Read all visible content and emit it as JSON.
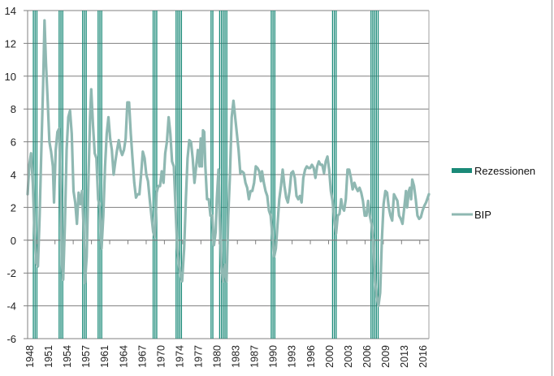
{
  "chart_data": {
    "type": "line",
    "title": "",
    "xlabel": "",
    "ylabel": "",
    "ylim": [
      -6,
      14
    ],
    "yticks": [
      14,
      12,
      10,
      8,
      6,
      4,
      2,
      0,
      -2,
      -4,
      -6
    ],
    "xtick_labels": [
      "1948",
      "1951",
      "1954",
      "1957",
      "1961",
      "1964",
      "1967",
      "1970",
      "1974",
      "1977",
      "1980",
      "1983",
      "1987",
      "1990",
      "1993",
      "1996",
      "2000",
      "2003",
      "2006",
      "2009",
      "2013",
      "2016"
    ],
    "xlim": [
      1948.0,
      2018.0
    ],
    "grid": "horizontal",
    "legend": {
      "position": "right",
      "entries": [
        "Rezessionen",
        "BIP"
      ]
    },
    "colors": {
      "recession": "#1a8a78",
      "bip": "#8fb8b2",
      "grid": "#808080"
    },
    "recessions": [
      {
        "start": 1949.0,
        "end": 1949.9
      },
      {
        "start": 1953.5,
        "end": 1954.4
      },
      {
        "start": 1957.6,
        "end": 1958.3
      },
      {
        "start": 1960.3,
        "end": 1961.1
      },
      {
        "start": 1969.9,
        "end": 1970.8
      },
      {
        "start": 1973.9,
        "end": 1975.1
      },
      {
        "start": 1980.0,
        "end": 1980.5
      },
      {
        "start": 1981.5,
        "end": 1982.8
      },
      {
        "start": 1990.5,
        "end": 1991.2
      },
      {
        "start": 2001.2,
        "end": 2001.9
      },
      {
        "start": 2007.9,
        "end": 2009.4
      }
    ],
    "series": [
      {
        "name": "BIP",
        "points": [
          [
            1948.0,
            2.8
          ],
          [
            1948.3,
            4.6
          ],
          [
            1948.6,
            5.3
          ],
          [
            1948.9,
            3.5
          ],
          [
            1949.2,
            0.5
          ],
          [
            1949.5,
            -1.4
          ],
          [
            1949.8,
            -1.6
          ],
          [
            1950.1,
            1.5
          ],
          [
            1950.4,
            5.5
          ],
          [
            1950.7,
            9.5
          ],
          [
            1950.95,
            13.4
          ],
          [
            1951.2,
            10.8
          ],
          [
            1951.5,
            8.5
          ],
          [
            1951.8,
            6.0
          ],
          [
            1952.1,
            5.4
          ],
          [
            1952.4,
            4.5
          ],
          [
            1952.6,
            2.3
          ],
          [
            1952.9,
            5.5
          ],
          [
            1953.2,
            6.6
          ],
          [
            1953.5,
            6.8
          ],
          [
            1953.8,
            3.0
          ],
          [
            1954.0,
            -1.5
          ],
          [
            1954.2,
            -2.4
          ],
          [
            1954.5,
            1.0
          ],
          [
            1954.8,
            5.5
          ],
          [
            1955.1,
            7.5
          ],
          [
            1955.4,
            7.9
          ],
          [
            1955.7,
            6.5
          ],
          [
            1956.0,
            3.0
          ],
          [
            1956.3,
            2.3
          ],
          [
            1956.6,
            1.0
          ],
          [
            1956.9,
            2.9
          ],
          [
            1957.2,
            2.2
          ],
          [
            1957.5,
            3.0
          ],
          [
            1957.8,
            0.5
          ],
          [
            1958.0,
            -2.6
          ],
          [
            1958.3,
            -1.0
          ],
          [
            1958.6,
            3.5
          ],
          [
            1958.9,
            7.5
          ],
          [
            1959.1,
            9.2
          ],
          [
            1959.4,
            7.0
          ],
          [
            1959.7,
            5.3
          ],
          [
            1960.0,
            5.0
          ],
          [
            1960.3,
            2.5
          ],
          [
            1960.6,
            2.0
          ],
          [
            1960.9,
            -0.5
          ],
          [
            1961.2,
            1.5
          ],
          [
            1961.5,
            4.5
          ],
          [
            1961.8,
            6.5
          ],
          [
            1962.1,
            7.5
          ],
          [
            1962.4,
            6.2
          ],
          [
            1962.7,
            5.5
          ],
          [
            1963.0,
            4.0
          ],
          [
            1963.3,
            4.8
          ],
          [
            1963.6,
            5.5
          ],
          [
            1963.9,
            6.1
          ],
          [
            1964.2,
            5.5
          ],
          [
            1964.5,
            5.2
          ],
          [
            1964.8,
            5.5
          ],
          [
            1965.1,
            6.2
          ],
          [
            1965.4,
            8.4
          ],
          [
            1965.7,
            8.4
          ],
          [
            1966.0,
            6.5
          ],
          [
            1966.3,
            5.0
          ],
          [
            1966.6,
            3.5
          ],
          [
            1966.9,
            2.6
          ],
          [
            1967.2,
            2.8
          ],
          [
            1967.5,
            2.8
          ],
          [
            1967.8,
            4.0
          ],
          [
            1968.1,
            5.4
          ],
          [
            1968.4,
            5.0
          ],
          [
            1968.7,
            4.0
          ],
          [
            1969.0,
            3.6
          ],
          [
            1969.3,
            2.5
          ],
          [
            1969.6,
            1.5
          ],
          [
            1969.9,
            0.5
          ],
          [
            1970.2,
            0.2
          ],
          [
            1970.5,
            2.9
          ],
          [
            1970.8,
            3.3
          ],
          [
            1971.1,
            3.3
          ],
          [
            1971.4,
            4.2
          ],
          [
            1971.7,
            3.5
          ],
          [
            1972.0,
            5.3
          ],
          [
            1972.3,
            6.0
          ],
          [
            1972.6,
            7.5
          ],
          [
            1972.9,
            6.5
          ],
          [
            1973.2,
            4.8
          ],
          [
            1973.5,
            4.5
          ],
          [
            1973.8,
            2.0
          ],
          [
            1974.1,
            -0.5
          ],
          [
            1974.4,
            -1.5
          ],
          [
            1974.7,
            -2.2
          ],
          [
            1974.95,
            -2.5
          ],
          [
            1975.3,
            -0.5
          ],
          [
            1975.6,
            2.5
          ],
          [
            1975.9,
            5.0
          ],
          [
            1976.2,
            6.1
          ],
          [
            1976.5,
            6.0
          ],
          [
            1976.8,
            5.0
          ],
          [
            1977.1,
            3.5
          ],
          [
            1977.4,
            4.5
          ],
          [
            1977.7,
            5.5
          ],
          [
            1978.0,
            4.5
          ],
          [
            1978.2,
            6.2
          ],
          [
            1978.4,
            4.5
          ],
          [
            1978.6,
            6.7
          ],
          [
            1978.8,
            6.6
          ],
          [
            1979.0,
            4.5
          ],
          [
            1979.3,
            2.5
          ],
          [
            1979.6,
            2.5
          ],
          [
            1979.9,
            1.5
          ],
          [
            1980.2,
            1.5
          ],
          [
            1980.5,
            -0.3
          ],
          [
            1980.8,
            0.5
          ],
          [
            1981.0,
            2.5
          ],
          [
            1981.3,
            4.3
          ],
          [
            1981.5,
            1.5
          ],
          [
            1981.8,
            -1.5
          ],
          [
            1982.1,
            -2.5
          ],
          [
            1982.4,
            -1.5
          ],
          [
            1982.7,
            -2.5
          ],
          [
            1983.0,
            1.5
          ],
          [
            1983.3,
            4.0
          ],
          [
            1983.6,
            7.5
          ],
          [
            1983.9,
            8.5
          ],
          [
            1984.2,
            7.5
          ],
          [
            1984.5,
            6.5
          ],
          [
            1984.8,
            5.5
          ],
          [
            1985.1,
            4.1
          ],
          [
            1985.4,
            4.2
          ],
          [
            1985.7,
            4.1
          ],
          [
            1986.0,
            3.5
          ],
          [
            1986.3,
            3.2
          ],
          [
            1986.6,
            2.5
          ],
          [
            1986.9,
            3.0
          ],
          [
            1987.2,
            3.0
          ],
          [
            1987.5,
            3.5
          ],
          [
            1987.8,
            4.5
          ],
          [
            1988.1,
            4.4
          ],
          [
            1988.4,
            4.2
          ],
          [
            1988.7,
            3.6
          ],
          [
            1988.9,
            4.2
          ],
          [
            1989.2,
            3.5
          ],
          [
            1989.5,
            3.0
          ],
          [
            1989.8,
            2.7
          ],
          [
            1990.1,
            1.8
          ],
          [
            1990.4,
            1.5
          ],
          [
            1990.7,
            0.3
          ],
          [
            1991.0,
            -1.0
          ],
          [
            1991.3,
            -0.5
          ],
          [
            1991.6,
            1.0
          ],
          [
            1991.9,
            2.5
          ],
          [
            1992.2,
            3.3
          ],
          [
            1992.5,
            4.3
          ],
          [
            1992.8,
            3.3
          ],
          [
            1993.1,
            2.6
          ],
          [
            1993.4,
            2.3
          ],
          [
            1993.7,
            3.0
          ],
          [
            1994.0,
            4.1
          ],
          [
            1994.3,
            4.2
          ],
          [
            1994.6,
            3.8
          ],
          [
            1994.9,
            2.7
          ],
          [
            1995.2,
            2.5
          ],
          [
            1995.5,
            2.7
          ],
          [
            1995.8,
            2.3
          ],
          [
            1996.1,
            3.8
          ],
          [
            1996.4,
            4.3
          ],
          [
            1996.7,
            4.5
          ],
          [
            1997.0,
            4.4
          ],
          [
            1997.3,
            4.4
          ],
          [
            1997.6,
            4.6
          ],
          [
            1997.9,
            4.4
          ],
          [
            1998.2,
            3.8
          ],
          [
            1998.5,
            4.5
          ],
          [
            1998.8,
            4.8
          ],
          [
            1999.1,
            4.6
          ],
          [
            1999.4,
            4.6
          ],
          [
            1999.7,
            4.1
          ],
          [
            2000.0,
            4.8
          ],
          [
            2000.3,
            5.1
          ],
          [
            2000.6,
            4.3
          ],
          [
            2000.9,
            3.0
          ],
          [
            2001.2,
            2.4
          ],
          [
            2001.5,
            1.2
          ],
          [
            2001.8,
            0.4
          ],
          [
            2002.1,
            1.5
          ],
          [
            2002.4,
            1.6
          ],
          [
            2002.7,
            2.5
          ],
          [
            2002.9,
            2.0
          ],
          [
            2003.2,
            1.8
          ],
          [
            2003.5,
            2.5
          ],
          [
            2003.8,
            4.3
          ],
          [
            2004.1,
            4.3
          ],
          [
            2004.4,
            3.8
          ],
          [
            2004.7,
            3.1
          ],
          [
            2005.0,
            3.5
          ],
          [
            2005.3,
            3.2
          ],
          [
            2005.6,
            3.0
          ],
          [
            2005.9,
            3.2
          ],
          [
            2006.2,
            2.9
          ],
          [
            2006.5,
            2.4
          ],
          [
            2006.8,
            1.5
          ],
          [
            2007.1,
            1.5
          ],
          [
            2007.4,
            2.4
          ],
          [
            2007.7,
            1.5
          ],
          [
            2008.0,
            1.0
          ],
          [
            2008.3,
            0.0
          ],
          [
            2008.6,
            -2.5
          ],
          [
            2008.9,
            -3.5
          ],
          [
            2009.2,
            -4.0
          ],
          [
            2009.5,
            -3.2
          ],
          [
            2009.8,
            0.0
          ],
          [
            2010.1,
            2.2
          ],
          [
            2010.4,
            3.0
          ],
          [
            2010.7,
            2.9
          ],
          [
            2011.0,
            2.0
          ],
          [
            2011.3,
            1.5
          ],
          [
            2011.6,
            1.2
          ],
          [
            2011.9,
            2.8
          ],
          [
            2012.2,
            2.6
          ],
          [
            2012.5,
            2.4
          ],
          [
            2012.8,
            1.5
          ],
          [
            2013.1,
            1.3
          ],
          [
            2013.4,
            1.0
          ],
          [
            2013.7,
            2.0
          ],
          [
            2014.0,
            3.0
          ],
          [
            2014.2,
            2.0
          ],
          [
            2014.5,
            3.0
          ],
          [
            2014.7,
            3.2
          ],
          [
            2014.9,
            2.5
          ],
          [
            2015.1,
            3.7
          ],
          [
            2015.4,
            3.3
          ],
          [
            2015.7,
            2.5
          ],
          [
            2016.0,
            1.5
          ],
          [
            2016.3,
            1.3
          ],
          [
            2016.6,
            1.4
          ],
          [
            2016.9,
            1.8
          ],
          [
            2017.2,
            2.1
          ],
          [
            2017.5,
            2.3
          ],
          [
            2017.8,
            2.6
          ],
          [
            2018.0,
            2.8
          ]
        ]
      }
    ]
  },
  "legend": {
    "items": [
      {
        "label": "Rezessionen",
        "swatch": "bar",
        "color": "#1a8a78"
      },
      {
        "label": "BIP",
        "swatch": "line",
        "color": "#8fb8b2"
      }
    ]
  }
}
